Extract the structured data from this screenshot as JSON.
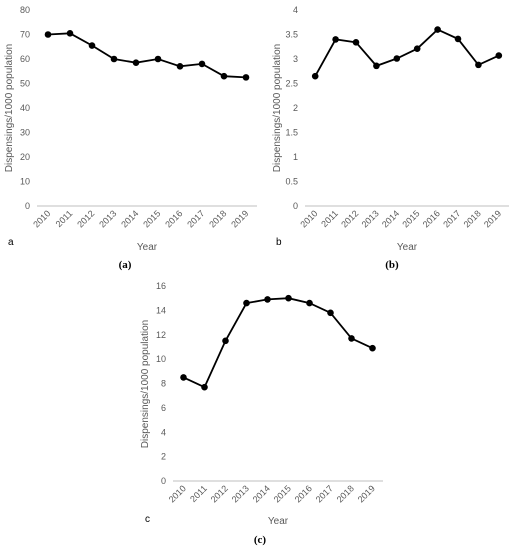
{
  "chart_data": [
    {
      "type": "line",
      "panel_letter": "a",
      "caption": "(a)",
      "xlabel": "Year",
      "ylabel": "Dispensings/1000  population",
      "categories": [
        "2010",
        "2011",
        "2012",
        "2013",
        "2014",
        "2015",
        "2016",
        "2017",
        "2018",
        "2019"
      ],
      "values": [
        70,
        70.5,
        65.5,
        60,
        58.5,
        60,
        57,
        58,
        53,
        52.5
      ],
      "ylim": [
        0,
        80
      ],
      "yticks": [
        "0",
        "10",
        "20",
        "30",
        "40",
        "50",
        "60",
        "70",
        "80"
      ],
      "grid": false,
      "legend": "none"
    },
    {
      "type": "line",
      "panel_letter": "b",
      "caption": "(b)",
      "xlabel": "Year",
      "ylabel": "Dispensings/1000  population",
      "categories": [
        "2010",
        "2011",
        "2012",
        "2013",
        "2014",
        "2015",
        "2016",
        "2017",
        "2018",
        "2019"
      ],
      "values": [
        2.65,
        3.4,
        3.34,
        2.86,
        3.01,
        3.21,
        3.6,
        3.41,
        2.88,
        3.07
      ],
      "ylim": [
        0,
        4
      ],
      "yticks": [
        "0",
        "0.5",
        "1",
        "1.5",
        "2",
        "2.5",
        "3",
        "3.5",
        "4"
      ],
      "grid": false,
      "legend": "none"
    },
    {
      "type": "line",
      "panel_letter": "c",
      "caption": "(c)",
      "xlabel": "Year",
      "ylabel": "Dispensings/1000 population",
      "categories": [
        "2010",
        "2011",
        "2012",
        "2013",
        "2014",
        "2015",
        "2016",
        "2017",
        "2018",
        "2019"
      ],
      "values": [
        8.5,
        7.7,
        11.5,
        14.6,
        14.9,
        15.0,
        14.6,
        13.8,
        11.7,
        10.9
      ],
      "ylim": [
        0,
        16
      ],
      "yticks": [
        "0",
        "2",
        "4",
        "6",
        "8",
        "10",
        "12",
        "14",
        "16"
      ],
      "grid": false,
      "legend": "none"
    }
  ]
}
